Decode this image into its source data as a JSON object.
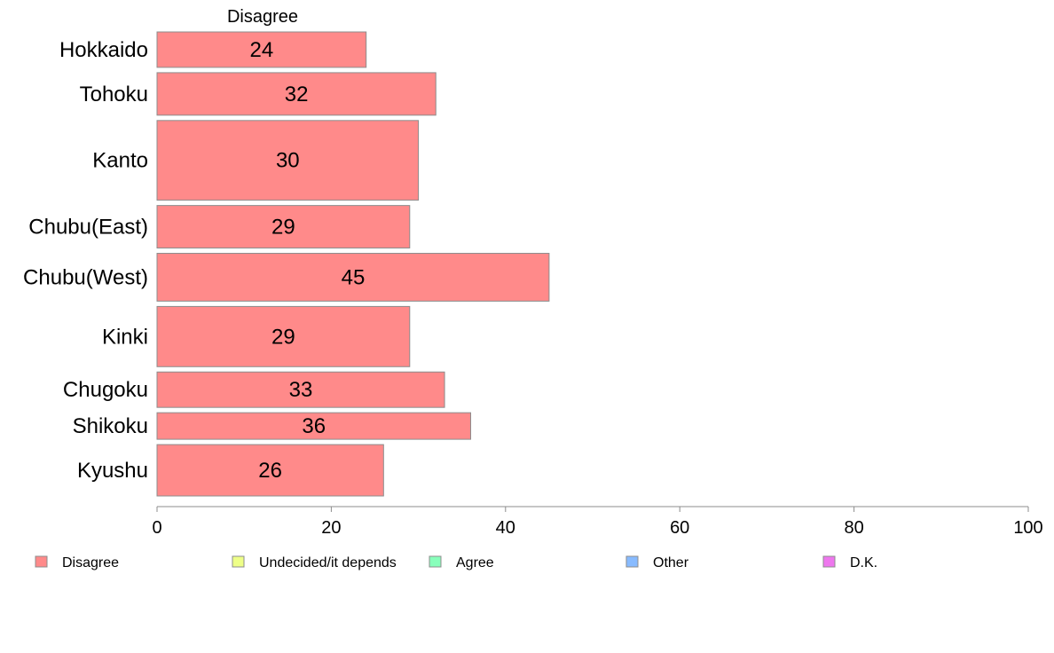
{
  "chart_data": {
    "type": "bar",
    "orientation": "horizontal",
    "panel_title": "Disagree",
    "categories": [
      "Hokkaido",
      "Tohoku",
      "Kanto",
      "Chubu(East)",
      "Chubu(West)",
      "Kinki",
      "Chugoku",
      "Shikoku",
      "Kyushu"
    ],
    "relative_bar_widths": [
      1.0,
      1.2,
      2.25,
      1.2,
      1.35,
      1.7,
      1.0,
      0.75,
      1.45
    ],
    "series": [
      {
        "name": "Disagree",
        "values": [
          24,
          32,
          30,
          29,
          45,
          29,
          33,
          36,
          26
        ],
        "data_labels": [
          "24",
          "32",
          "30",
          "29",
          "45",
          "29",
          "33",
          "36",
          "26"
        ]
      }
    ],
    "x_ticks": [
      0,
      20,
      40,
      60,
      80,
      100
    ],
    "xlim": [
      0,
      100
    ],
    "grid": false,
    "legend_position": "bottom",
    "legend": [
      {
        "label": "Disagree",
        "color": "#FF8A8A"
      },
      {
        "label": "Undecided/it depends",
        "color": "#EEFF88"
      },
      {
        "label": "Agree",
        "color": "#88FFBB"
      },
      {
        "label": "Other",
        "color": "#88BBFF"
      },
      {
        "label": "D.K.",
        "color": "#EE77EE"
      }
    ],
    "bar_color": "#FF8A8A",
    "bar_border_color": "#8C8C8C"
  }
}
